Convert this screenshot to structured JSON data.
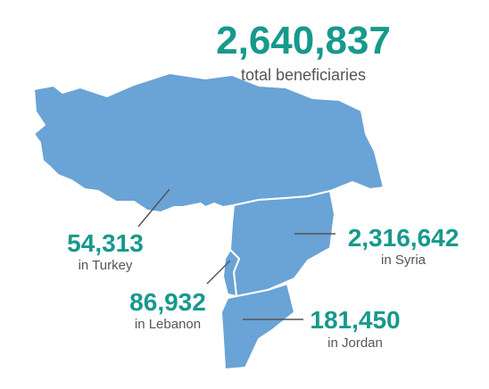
{
  "total": {
    "value": "2,640,837",
    "label": "total beneficiaries"
  },
  "regions": [
    {
      "value": "54,313",
      "label": "in Turkey"
    },
    {
      "value": "2,316,642",
      "label": "in Syria"
    },
    {
      "value": "86,932",
      "label": "in Lebanon"
    },
    {
      "value": "181,450",
      "label": "in Jordan"
    }
  ]
}
